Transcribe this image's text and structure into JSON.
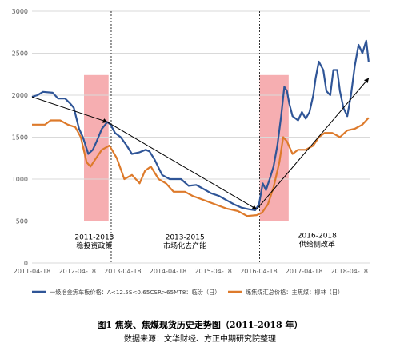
{
  "chart_data": {
    "type": "line",
    "x_ticks": [
      "2011-04-18",
      "2012-04-18",
      "2013-04-18",
      "2014-04-18",
      "2015-04-18",
      "2016-04-18",
      "2017-04-18",
      "2018-04-18"
    ],
    "ylim": [
      0,
      3000
    ],
    "y_ticks": [
      0,
      500,
      1000,
      1500,
      2000,
      2500,
      3000
    ],
    "grid": "horizontal",
    "legend_position": "bottom",
    "colors": {
      "coke": "#2f5597",
      "coal": "#dd7a2b",
      "band": "#f4a0a3",
      "arrow": "#000000"
    },
    "series": [
      {
        "name": "一级冶金焦车板价格：A<12.5S<0.65CSR>65MT8：临汾（日）",
        "points": [
          [
            "2011-04-18",
            1980
          ],
          [
            "2011-06-01",
            2000
          ],
          [
            "2011-07-15",
            2040
          ],
          [
            "2011-10-01",
            2030
          ],
          [
            "2011-11-15",
            1960
          ],
          [
            "2012-01-10",
            1960
          ],
          [
            "2012-02-20",
            1900
          ],
          [
            "2012-03-20",
            1850
          ],
          [
            "2012-05-01",
            1600
          ],
          [
            "2012-06-01",
            1500
          ],
          [
            "2012-07-15",
            1300
          ],
          [
            "2012-08-20",
            1350
          ],
          [
            "2012-09-20",
            1450
          ],
          [
            "2012-11-01",
            1600
          ],
          [
            "2012-12-15",
            1680
          ],
          [
            "2013-01-10",
            1650
          ],
          [
            "2013-02-15",
            1550
          ],
          [
            "2013-04-01",
            1500
          ],
          [
            "2013-05-20",
            1400
          ],
          [
            "2013-07-01",
            1300
          ],
          [
            "2013-09-01",
            1320
          ],
          [
            "2013-10-20",
            1350
          ],
          [
            "2013-11-20",
            1330
          ],
          [
            "2014-01-01",
            1230
          ],
          [
            "2014-03-01",
            1050
          ],
          [
            "2014-05-01",
            1000
          ],
          [
            "2014-08-01",
            1000
          ],
          [
            "2014-10-01",
            920
          ],
          [
            "2014-12-01",
            930
          ],
          [
            "2015-02-01",
            880
          ],
          [
            "2015-04-01",
            830
          ],
          [
            "2015-06-01",
            800
          ],
          [
            "2015-08-01",
            750
          ],
          [
            "2015-10-01",
            700
          ],
          [
            "2015-12-01",
            660
          ],
          [
            "2016-02-01",
            640
          ],
          [
            "2016-03-20",
            630
          ],
          [
            "2016-04-20",
            700
          ],
          [
            "2016-05-20",
            950
          ],
          [
            "2016-06-15",
            870
          ],
          [
            "2016-07-15",
            1000
          ],
          [
            "2016-08-15",
            1150
          ],
          [
            "2016-09-15",
            1400
          ],
          [
            "2016-10-15",
            1750
          ],
          [
            "2016-11-10",
            2100
          ],
          [
            "2016-12-01",
            2050
          ],
          [
            "2016-12-20",
            1900
          ],
          [
            "2017-01-15",
            1750
          ],
          [
            "2017-03-01",
            1700
          ],
          [
            "2017-04-01",
            1800
          ],
          [
            "2017-05-01",
            1720
          ],
          [
            "2017-06-01",
            1800
          ],
          [
            "2017-07-01",
            2000
          ],
          [
            "2017-07-20",
            2200
          ],
          [
            "2017-08-15",
            2400
          ],
          [
            "2017-09-20",
            2300
          ],
          [
            "2017-10-15",
            2050
          ],
          [
            "2017-11-15",
            2000
          ],
          [
            "2017-12-10",
            2300
          ],
          [
            "2018-01-10",
            2300
          ],
          [
            "2018-02-01",
            2050
          ],
          [
            "2018-03-01",
            1850
          ],
          [
            "2018-04-01",
            1750
          ],
          [
            "2018-05-01",
            2000
          ],
          [
            "2018-06-01",
            2350
          ],
          [
            "2018-07-01",
            2600
          ],
          [
            "2018-08-01",
            2500
          ],
          [
            "2018-09-01",
            2650
          ],
          [
            "2018-09-20",
            2400
          ]
        ]
      },
      {
        "name": "炼焦煤汇总价格：主焦煤：柳林（日）",
        "points": [
          [
            "2011-04-18",
            1650
          ],
          [
            "2011-08-01",
            1650
          ],
          [
            "2011-09-15",
            1700
          ],
          [
            "2011-12-01",
            1700
          ],
          [
            "2012-02-01",
            1650
          ],
          [
            "2012-04-01",
            1620
          ],
          [
            "2012-05-15",
            1500
          ],
          [
            "2012-07-01",
            1200
          ],
          [
            "2012-08-01",
            1150
          ],
          [
            "2012-09-15",
            1250
          ],
          [
            "2012-11-01",
            1350
          ],
          [
            "2013-01-01",
            1400
          ],
          [
            "2013-03-01",
            1250
          ],
          [
            "2013-05-01",
            1000
          ],
          [
            "2013-07-01",
            1050
          ],
          [
            "2013-09-01",
            950
          ],
          [
            "2013-10-15",
            1100
          ],
          [
            "2013-12-01",
            1150
          ],
          [
            "2014-02-01",
            1000
          ],
          [
            "2014-04-01",
            950
          ],
          [
            "2014-06-01",
            850
          ],
          [
            "2014-09-01",
            850
          ],
          [
            "2014-11-01",
            800
          ],
          [
            "2015-02-01",
            750
          ],
          [
            "2015-05-01",
            700
          ],
          [
            "2015-08-01",
            650
          ],
          [
            "2015-11-01",
            620
          ],
          [
            "2016-01-15",
            560
          ],
          [
            "2016-04-01",
            570
          ],
          [
            "2016-05-15",
            600
          ],
          [
            "2016-07-01",
            700
          ],
          [
            "2016-08-15",
            900
          ],
          [
            "2016-10-01",
            1200
          ],
          [
            "2016-11-01",
            1500
          ],
          [
            "2016-12-01",
            1450
          ],
          [
            "2017-01-15",
            1300
          ],
          [
            "2017-03-01",
            1350
          ],
          [
            "2017-05-01",
            1350
          ],
          [
            "2017-07-01",
            1400
          ],
          [
            "2017-08-15",
            1500
          ],
          [
            "2017-10-01",
            1550
          ],
          [
            "2017-12-01",
            1550
          ],
          [
            "2018-02-01",
            1500
          ],
          [
            "2018-04-01",
            1580
          ],
          [
            "2018-06-01",
            1600
          ],
          [
            "2018-08-01",
            1650
          ],
          [
            "2018-09-20",
            1730
          ]
        ]
      }
    ],
    "bands": [
      {
        "from": "2012-06-10",
        "to": "2012-12-25"
      },
      {
        "from": "2016-04-25",
        "to": "2016-12-15"
      }
    ],
    "dividers": [
      "2013-01-15",
      "2016-04-25"
    ],
    "arrows": [
      {
        "from": [
          "2011-04-18",
          1980
        ],
        "to": [
          "2012-12-15",
          1680
        ]
      },
      {
        "from": [
          "2012-12-15",
          1680
        ],
        "to": [
          "2016-04-01",
          640
        ]
      },
      {
        "from": [
          "2016-04-01",
          640
        ],
        "to": [
          "2018-09-20",
          2200
        ]
      }
    ],
    "annotations": [
      {
        "lines": [
          "2011-2013",
          "稳投资政策"
        ],
        "at": [
          "2012-09-01",
          280
        ]
      },
      {
        "lines": [
          "2013-2015",
          "市场化去产能"
        ],
        "at": [
          "2014-09-01",
          280
        ]
      },
      {
        "lines": [
          "2016-2018",
          "供给侧改革"
        ],
        "at": [
          "2017-08-01",
          300
        ]
      }
    ]
  },
  "caption": {
    "title": "图1   焦炭、焦煤现货历史走势图（2011-2018 年）",
    "source": "数据来源：文华财经、方正中期研究院整理"
  }
}
